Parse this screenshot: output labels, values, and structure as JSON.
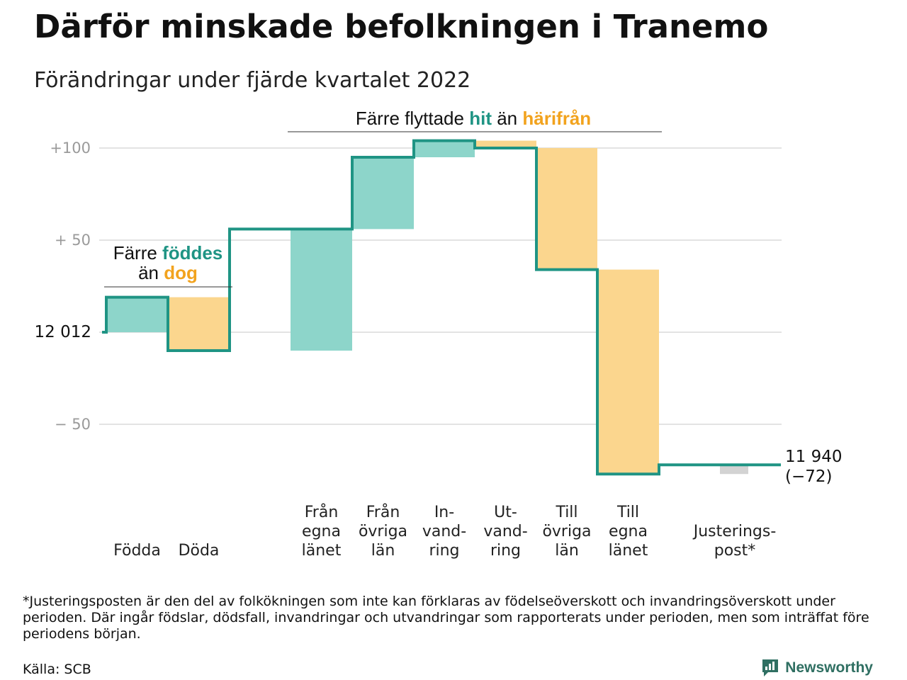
{
  "title": "Därför minskade befolkningen i Tranemo",
  "subtitle": "Förändringar under fjärde kvartalet 2022",
  "colors": {
    "increase": "#8dd5ca",
    "decrease": "#fbd68e",
    "adjustment": "#d3d3d3",
    "line": "#1f9484",
    "teal_text": "#1f9484",
    "orange_text": "#f2a31e",
    "grid": "#e3e3e3"
  },
  "annotations": {
    "births_deaths": {
      "line1_prefix": "Färre ",
      "line1_highlight": "föddes",
      "line2_prefix": "än ",
      "line2_highlight": "dog"
    },
    "migration": {
      "prefix": "Färre flyttade ",
      "highlight1": "hit",
      "middle": " än ",
      "highlight2": "härifrån"
    }
  },
  "chart_data": {
    "type": "waterfall",
    "start_label": "12 012",
    "end_label": "11 940",
    "end_change_label": "(−72)",
    "baseline": 12012,
    "yticks": [
      {
        "value": 100,
        "label": "+100"
      },
      {
        "value": 50,
        "label": "+ 50"
      },
      {
        "value": 0,
        "label": ""
      },
      {
        "value": -50,
        "label": "− 50"
      }
    ],
    "ylim": [
      -80,
      105
    ],
    "grid": true,
    "steps": [
      {
        "category": [
          "Födda"
        ],
        "change": 19
      },
      {
        "category": [
          "Döda"
        ],
        "change": -29
      },
      {
        "category": [
          "Från",
          "egna",
          "länet"
        ],
        "change": 66
      },
      {
        "category": [
          "Från",
          "övriga",
          "län"
        ],
        "change": 39
      },
      {
        "category": [
          "In-",
          "vand-",
          "ring"
        ],
        "change": 9
      },
      {
        "category": [
          "Ut-",
          "vand-",
          "ring"
        ],
        "change": -4
      },
      {
        "category": [
          "Till",
          "övriga",
          "län"
        ],
        "change": -66
      },
      {
        "category": [
          "Till",
          "egna",
          "länet"
        ],
        "change": -111
      },
      {
        "category": [
          "Justerings-",
          "post*"
        ],
        "change": 5
      }
    ]
  },
  "footnote": "*Justeringsposten är den del av folkökningen som inte kan förklaras av födelseöverskott och invandringsöverskott under perioden. Där ingår födslar, dödsfall, invandringar och utvandringar som rapporterats under perioden, men som inträffat före periodens början.",
  "source": "Källa: SCB",
  "logo": {
    "text": "Newsworthy",
    "icon": "newsworthy-chart-icon"
  }
}
